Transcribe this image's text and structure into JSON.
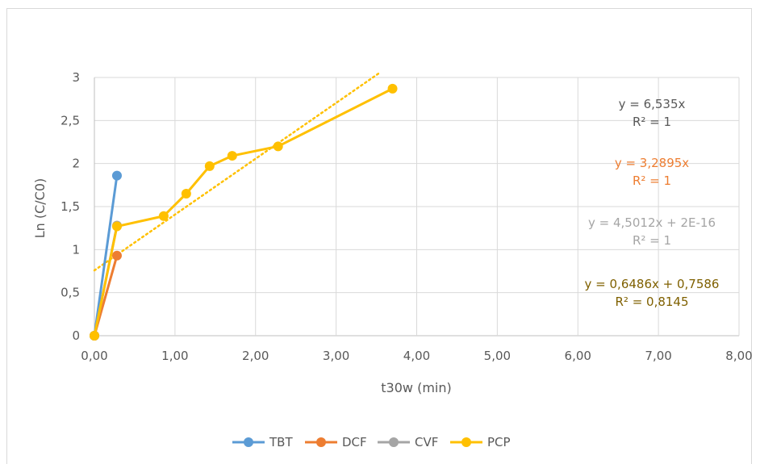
{
  "chart_data": {
    "type": "scatter",
    "title": "",
    "xlabel": "t30w (min)",
    "ylabel": "Ln (C/C0)",
    "xlim": [
      0,
      8
    ],
    "ylim": [
      0,
      3
    ],
    "x_ticks": [
      "0,00",
      "1,00",
      "2,00",
      "3,00",
      "4,00",
      "5,00",
      "6,00",
      "7,00",
      "8,00"
    ],
    "y_ticks": [
      "0",
      "0,5",
      "1",
      "1,5",
      "2",
      "2,5",
      "3"
    ],
    "grid": "vertical and horizontal major",
    "legend_position": "bottom",
    "series": [
      {
        "name": "TBT",
        "color": "#5b9bd5",
        "points": [
          [
            0,
            0
          ],
          [
            0.28,
            1.86
          ]
        ]
      },
      {
        "name": "DCF",
        "color": "#ed7d31",
        "points": [
          [
            0,
            0
          ],
          [
            0.28,
            0.93
          ]
        ]
      },
      {
        "name": "CVF",
        "color": "#a5a5a5",
        "points": [
          [
            0,
            0
          ],
          [
            0.28,
            1.28
          ]
        ]
      },
      {
        "name": "PCP",
        "color": "#ffc000",
        "points": [
          [
            0,
            0
          ],
          [
            0.28,
            1.27
          ],
          [
            0.86,
            1.39
          ],
          [
            1.14,
            1.65
          ],
          [
            1.43,
            1.97
          ],
          [
            1.71,
            2.09
          ],
          [
            2.28,
            2.2
          ],
          [
            3.7,
            2.87
          ]
        ]
      }
    ],
    "trendline": {
      "series": "PCP",
      "slope": 0.6486,
      "intercept": 0.7586,
      "x_range": [
        0,
        3.55
      ],
      "color": "#ffc000"
    },
    "annotations": [
      {
        "lines": [
          "y = 6,535x",
          "R² = 1"
        ],
        "color": "#595959"
      },
      {
        "lines": [
          "y = 3,2895x",
          "R² = 1"
        ],
        "color": "#ed7d31"
      },
      {
        "lines": [
          "y = 4,5012x + 2E-16",
          "R² = 1"
        ],
        "color": "#a5a5a5"
      },
      {
        "lines": [
          "y = 0,6486x + 0,7586",
          "R² = 0,8145"
        ],
        "color": "#7f6000"
      }
    ]
  }
}
